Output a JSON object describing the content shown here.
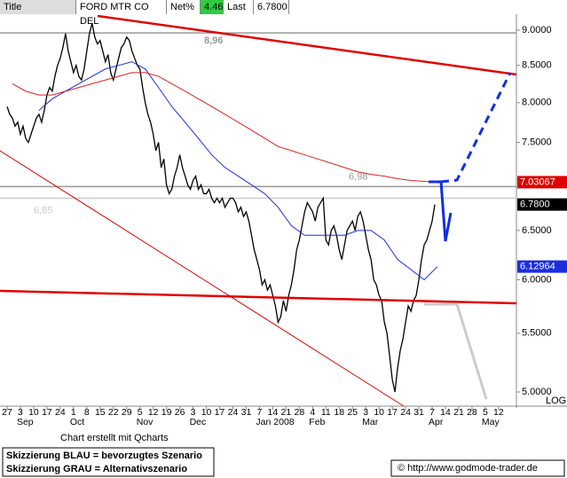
{
  "chart_data": {
    "type": "line",
    "log_scale": true,
    "header": [
      "Title",
      "FORD MTR CO DEL",
      "Net%",
      "4.46",
      "Last",
      "6.7800"
    ],
    "categories": [
      "27",
      "3",
      "10",
      "17",
      "24",
      "1",
      "8",
      "15",
      "22",
      "29",
      "5",
      "12",
      "19",
      "26",
      "3",
      "10",
      "17",
      "24",
      "31",
      "7",
      "14",
      "21",
      "28",
      "4",
      "11",
      "18",
      "25",
      "3",
      "10",
      "17",
      "24",
      "31",
      "7",
      "14",
      "21",
      "28",
      "5",
      "12"
    ],
    "months": [
      null,
      "Sep",
      null,
      null,
      null,
      "Oct",
      null,
      null,
      null,
      null,
      "Nov",
      null,
      null,
      null,
      "Dec",
      null,
      null,
      null,
      null,
      "Jan 2008",
      null,
      null,
      null,
      "Feb",
      null,
      null,
      null,
      "Mar",
      null,
      null,
      null,
      null,
      "Apr",
      null,
      null,
      null,
      "May",
      null
    ],
    "series": [
      {
        "name": "Close",
        "color": "#000000",
        "values": [
          [
            7.95,
            7.85,
            7.8,
            7.7,
            7.75
          ],
          [
            7.6,
            7.7,
            7.55,
            7.5,
            7.6
          ],
          [
            7.7,
            7.8,
            7.85,
            7.75,
            7.9
          ],
          [
            8.1,
            8.2,
            8.15,
            8.35,
            8.5
          ],
          [
            8.6,
            8.75,
            8.95,
            8.7,
            8.55
          ],
          [
            8.4,
            8.5,
            8.35,
            8.3,
            8.45
          ],
          [
            8.7,
            8.95,
            9.1,
            8.9,
            8.8
          ],
          [
            8.85,
            8.7,
            8.55,
            8.65,
            8.4
          ],
          [
            8.3,
            8.45,
            8.6,
            8.75,
            8.8
          ],
          [
            8.9,
            8.85,
            8.7,
            8.6,
            8.5
          ],
          [
            8.45,
            8.2,
            8,
            7.85,
            7.75
          ],
          [
            7.6,
            7.4,
            7.5,
            7.2,
            7.3
          ],
          [
            7,
            6.9,
            6.95,
            7.1,
            7.2
          ],
          [
            7.35,
            7.2,
            7.1,
            7,
            6.95
          ],
          [
            7.05,
            7.1,
            6.95,
            7,
            6.9
          ],
          [
            6.9,
            6.95,
            6.85,
            6.8,
            6.85
          ],
          [
            6.8,
            6.85,
            6.75,
            6.8,
            6.85
          ],
          [
            6.85,
            6.8,
            6.7,
            6.75,
            6.65
          ],
          [
            6.7,
            6.6,
            6.45,
            6.3,
            6.2
          ],
          [
            6.1,
            5.95,
            6,
            5.9,
            5.95
          ],
          [
            5.85,
            5.75,
            5.6,
            5.65,
            5.8
          ],
          [
            5.7,
            5.85,
            5.95,
            6.1,
            6.3
          ],
          [
            6.4,
            6.55,
            6.7,
            6.8,
            6.75
          ],
          [
            6.7,
            6.6,
            6.75,
            6.8,
            6.85
          ],
          [
            6.4,
            6.35,
            6.5,
            6.55,
            6.45
          ],
          [
            6.3,
            6.2,
            6.35,
            6.5,
            6.55
          ],
          [
            6.6,
            6.5,
            6.65,
            6.7,
            6.6
          ],
          [
            6.45,
            6.3,
            6.2,
            6,
            5.95
          ],
          [
            5.85,
            5.8,
            5.6,
            5.5,
            5.3
          ],
          [
            5.1,
            5,
            5.2,
            5.35,
            5.45
          ],
          [
            5.6,
            5.75,
            5.7,
            5.8,
            5.85
          ],
          [
            6,
            6.2,
            6.35,
            6.4,
            6.5
          ],
          [
            6.6,
            6.78
          ]
        ]
      },
      {
        "name": "MA blue",
        "color": "#1a2ee0",
        "values": [
          null,
          null,
          7.9,
          8.05,
          8.15,
          8.25,
          8.35,
          8.45,
          8.5,
          8.55,
          8.45,
          8.2,
          7.95,
          7.75,
          7.55,
          7.35,
          7.2,
          7.1,
          7,
          6.9,
          6.75,
          6.55,
          6.45,
          6.45,
          6.45,
          6.45,
          6.5,
          6.5,
          6.4,
          6.2,
          6.1,
          6,
          6.13,
          null,
          null,
          null,
          null,
          null
        ]
      },
      {
        "name": "MA red",
        "color": "#e02020",
        "values": [
          8.25,
          8.15,
          8.1,
          8.1,
          8.15,
          8.2,
          8.25,
          8.3,
          8.35,
          8.4,
          8.4,
          8.35,
          8.25,
          8.15,
          8.05,
          7.95,
          7.85,
          7.75,
          7.65,
          7.55,
          7.45,
          7.4,
          7.35,
          7.3,
          7.25,
          7.2,
          7.15,
          7.12,
          7.1,
          7.07,
          7.05,
          7.04,
          7.03067,
          null,
          null,
          null,
          null,
          null
        ]
      }
    ],
    "ylim": [
      4.886,
      9.21
    ],
    "yticks": [
      {
        "value": 5,
        "label": "5.0000"
      },
      {
        "value": 5.5,
        "label": "5.5000"
      },
      {
        "value": 6,
        "label": "6.0000"
      },
      {
        "value": 6.5,
        "label": "6.5000"
      },
      {
        "value": 7.5,
        "label": "7.5000"
      },
      {
        "value": 8,
        "label": "8.0000"
      },
      {
        "value": 8.5,
        "label": "8.5000"
      },
      {
        "value": 9,
        "label": "9.0000"
      }
    ],
    "levels": [
      {
        "value": 8.96,
        "label": "8,96",
        "color": "#999999"
      },
      {
        "value": 6.98,
        "label": "6,98",
        "color": "#999999"
      },
      {
        "value": 6.85,
        "label": "6,85",
        "color": "#cccccc"
      }
    ],
    "price_tags": [
      {
        "value": 7.03067,
        "label": "7.03067",
        "color": "#e00000"
      },
      {
        "value": 6.78,
        "label": "6.7800",
        "color": "#000000"
      },
      {
        "value": 6.12964,
        "label": "6.12964",
        "color": "#1a2ee0"
      }
    ],
    "scale_label": "LOG",
    "credit": "Chart erstellt mit Qcharts",
    "notes": [
      "Skizzierung BLAU = bevorzugtes Szenario",
      "Skizzierung GRAU = Alternativszenario"
    ],
    "copyright": "© http://www.godmode-trader.de"
  }
}
